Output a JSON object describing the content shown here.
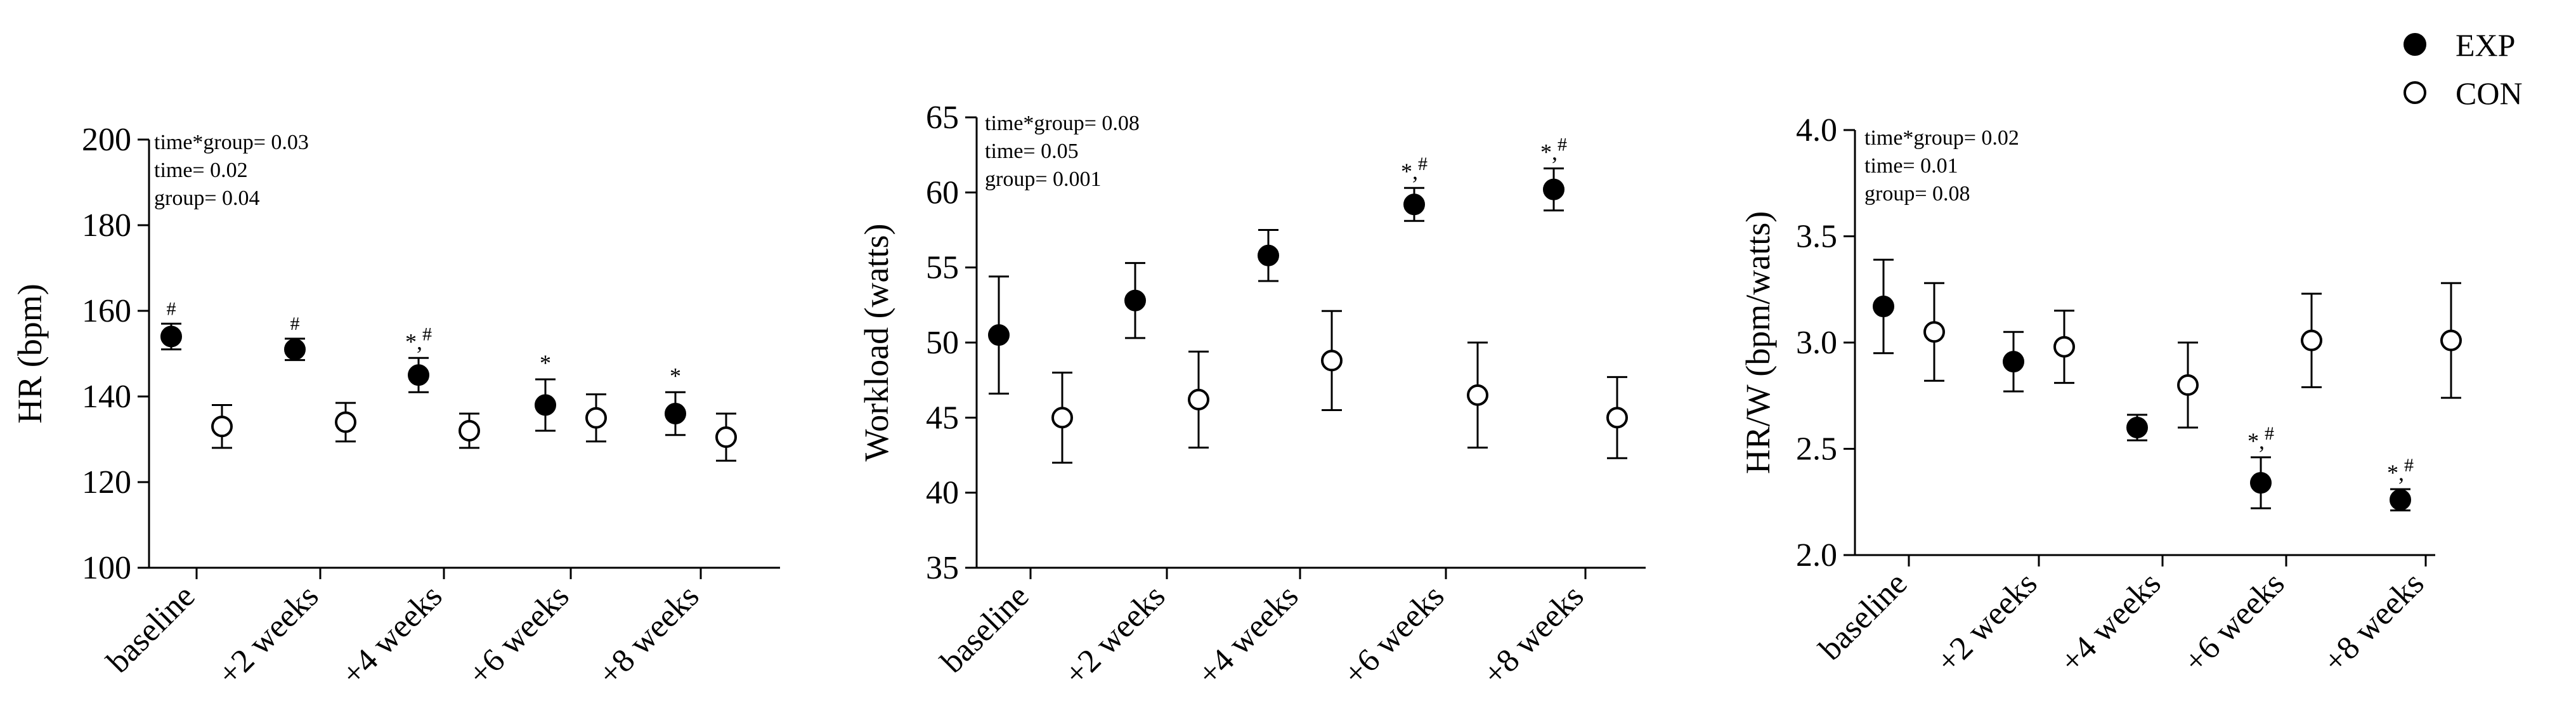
{
  "legend": [
    {
      "label": "EXP",
      "marker": "filled",
      "color": "#000000"
    },
    {
      "label": "CON",
      "marker": "open",
      "color": "#000000"
    }
  ],
  "chart_data": [
    {
      "type": "scatter",
      "subtype": "error-bar dot plot",
      "ylabel": "HR (bpm)",
      "ylim": [
        100,
        200
      ],
      "yticks": [
        "100",
        "120",
        "140",
        "160",
        "180",
        "200"
      ],
      "categories": [
        "baseline",
        "+2 weeks",
        "+4 weeks",
        "+6 weeks",
        "+8 weeks"
      ],
      "stats": [
        "time*group= 0.03",
        "time= 0.02",
        "group= 0.04"
      ],
      "series": [
        {
          "name": "EXP",
          "values": [
            154,
            151,
            145,
            138,
            136
          ],
          "errors": [
            3,
            2.5,
            4,
            6,
            5
          ],
          "annotations": [
            "#",
            "#",
            "*,#",
            "*",
            "*"
          ]
        },
        {
          "name": "CON",
          "values": [
            133,
            134,
            132,
            135,
            130.5
          ],
          "errors": [
            5,
            4.5,
            4,
            5.5,
            5.5
          ],
          "annotations": [
            "",
            "",
            "",
            "",
            ""
          ]
        }
      ]
    },
    {
      "type": "scatter",
      "subtype": "error-bar dot plot",
      "ylabel": "Workload (watts)",
      "ylim": [
        35,
        65
      ],
      "yticks": [
        "35",
        "40",
        "45",
        "50",
        "55",
        "60",
        "65"
      ],
      "categories": [
        "baseline",
        "+2 weeks",
        "+4 weeks",
        "+6 weeks",
        "+8 weeks"
      ],
      "stats": [
        "time*group= 0.08",
        "time= 0.05",
        "group= 0.001"
      ],
      "series": [
        {
          "name": "EXP",
          "values": [
            50.5,
            52.8,
            55.8,
            59.2,
            60.2
          ],
          "errors": [
            3.9,
            2.5,
            1.7,
            1.1,
            1.4
          ],
          "annotations": [
            "",
            "",
            "",
            "*,#",
            "*,#"
          ]
        },
        {
          "name": "CON",
          "values": [
            45,
            46.2,
            48.8,
            46.5,
            45
          ],
          "errors": [
            3,
            3.2,
            3.3,
            3.5,
            2.7
          ],
          "annotations": [
            "",
            "",
            "",
            "",
            ""
          ]
        }
      ]
    },
    {
      "type": "scatter",
      "subtype": "error-bar dot plot",
      "ylabel": "HR/W (bpm/watts)",
      "ylim": [
        2.0,
        4.0
      ],
      "yticks": [
        "2.0",
        "2.5",
        "3.0",
        "3.5",
        "4.0"
      ],
      "categories": [
        "baseline",
        "+2 weeks",
        "+4 weeks",
        "+6 weeks",
        "+8 weeks"
      ],
      "stats": [
        "time*group= 0.02",
        "time= 0.01",
        "group= 0.08"
      ],
      "series": [
        {
          "name": "EXP",
          "values": [
            3.17,
            2.91,
            2.6,
            2.34,
            2.26
          ],
          "errors": [
            0.22,
            0.14,
            0.06,
            0.12,
            0.05
          ],
          "annotations": [
            "",
            "",
            "",
            "*,#",
            "*,#"
          ]
        },
        {
          "name": "CON",
          "values": [
            3.05,
            2.98,
            2.8,
            3.01,
            3.01
          ],
          "errors": [
            0.23,
            0.17,
            0.2,
            0.22,
            0.27
          ],
          "annotations": [
            "",
            "",
            "",
            "",
            ""
          ]
        }
      ]
    }
  ]
}
